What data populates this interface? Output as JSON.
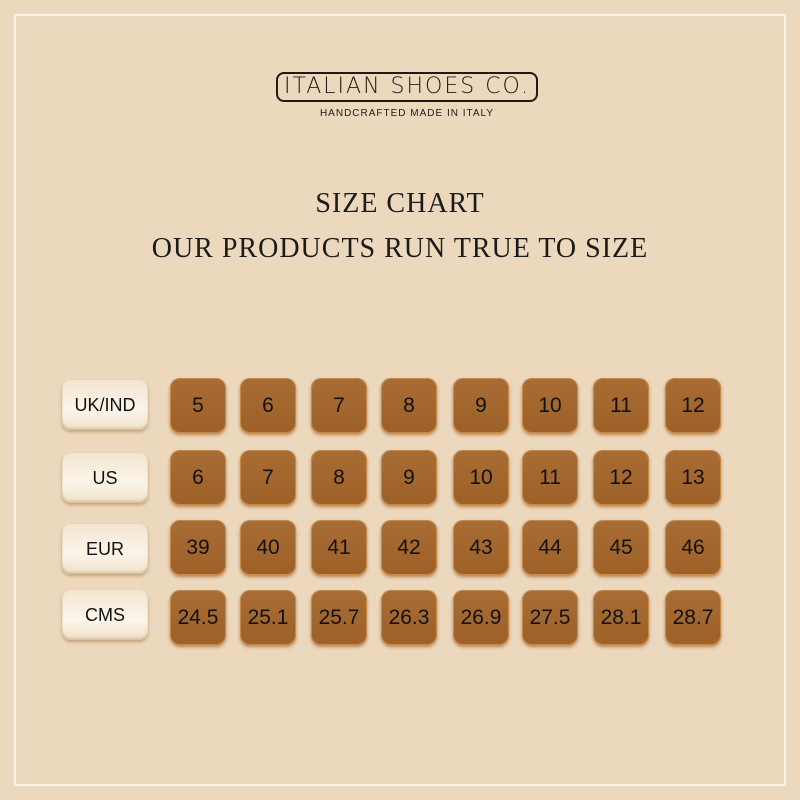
{
  "brand": {
    "name": "ITALIAN SHOES CO.",
    "tagline": "HANDCRAFTED MADE IN ITALY"
  },
  "heading": {
    "title": "SIZE CHART",
    "subtitle": "OUR PRODUCTS RUN TRUE TO SIZE"
  },
  "colors": {
    "background": "#ecd8bd",
    "cell": "#a3672e",
    "label": "#f8efe0"
  },
  "rows": [
    {
      "label": "UK/IND",
      "values": [
        "5",
        "6",
        "7",
        "8",
        "9",
        "10",
        "11",
        "12"
      ]
    },
    {
      "label": "US",
      "values": [
        "6",
        "7",
        "8",
        "9",
        "10",
        "11",
        "12",
        "13"
      ]
    },
    {
      "label": "EUR",
      "values": [
        "39",
        "40",
        "41",
        "42",
        "43",
        "44",
        "45",
        "46"
      ]
    },
    {
      "label": "CMS",
      "values": [
        "24.5",
        "25.1",
        "25.7",
        "26.3",
        "26.9",
        "27.5",
        "28.1",
        "28.7"
      ]
    }
  ]
}
